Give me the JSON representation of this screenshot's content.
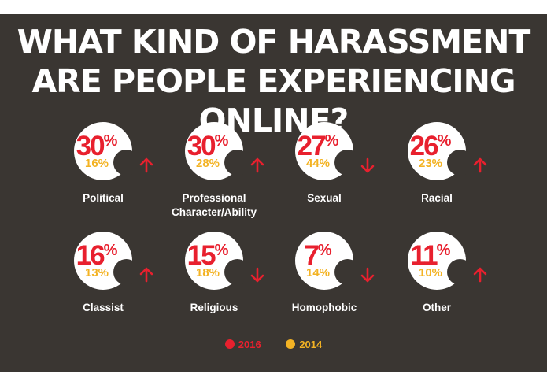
{
  "colors": {
    "background": "#3a3632",
    "badge": "#ffffff",
    "series_2016": "#e8202e",
    "series_2014": "#f3b324",
    "text": "#ffffff"
  },
  "chart_data": {
    "type": "table",
    "title": "WHAT KIND OF HARASSMENT ARE PEOPLE EXPERIENCING ONLINE?",
    "unit": "%",
    "legend": {
      "placement": "bottom-center",
      "entries": [
        "2016",
        "2014"
      ]
    },
    "categories": [
      "Political",
      "Professional Character/Ability",
      "Sexual",
      "Racial",
      "Classist",
      "Religious",
      "Homophobic",
      "Other"
    ],
    "series": [
      {
        "name": "2016",
        "values": [
          30,
          30,
          27,
          26,
          16,
          15,
          7,
          11
        ]
      },
      {
        "name": "2014",
        "values": [
          16,
          28,
          44,
          23,
          13,
          18,
          14,
          10
        ]
      }
    ],
    "items": [
      {
        "label": "Political",
        "v2016": "30",
        "v2014": "16%",
        "trend": "up"
      },
      {
        "label": "Professional Character/Ability",
        "v2016": "30",
        "v2014": "28%",
        "trend": "up"
      },
      {
        "label": "Sexual",
        "v2016": "27",
        "v2014": "44%",
        "trend": "down"
      },
      {
        "label": "Racial",
        "v2016": "26",
        "v2014": "23%",
        "trend": "up"
      },
      {
        "label": "Classist",
        "v2016": "16",
        "v2014": "13%",
        "trend": "up"
      },
      {
        "label": "Religious",
        "v2016": "15",
        "v2014": "18%",
        "trend": "down"
      },
      {
        "label": "Homophobic",
        "v2016": "7",
        "v2014": "14%",
        "trend": "down"
      },
      {
        "label": "Other",
        "v2016": "11",
        "v2014": "10%",
        "trend": "up"
      }
    ],
    "percent_sign": "%"
  }
}
